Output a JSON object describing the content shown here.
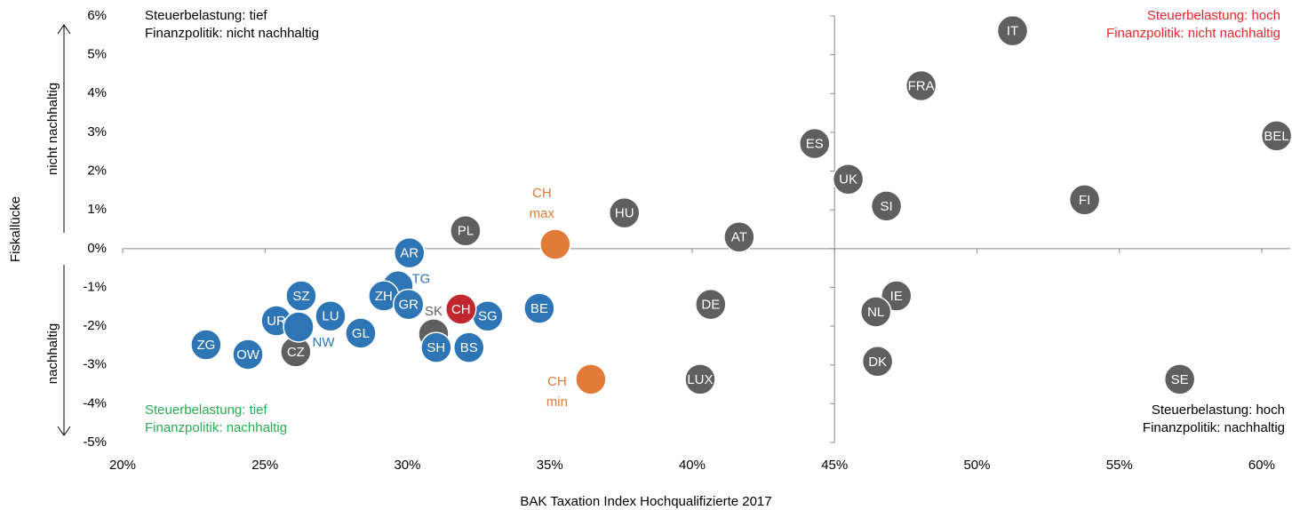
{
  "chart_data": {
    "type": "scatter",
    "x_title": "BAK Taxation Index Hochqualifizierte 2017",
    "y_title": "Fiskallücke",
    "y_arrow_up": "nicht nachhaltig",
    "y_arrow_down": "nachhaltig",
    "xlim": [
      20,
      61
    ],
    "ylim": [
      -5,
      6
    ],
    "y_axis_crosses": 45,
    "xticks": [
      {
        "value": 20,
        "label": "20%"
      },
      {
        "value": 25,
        "label": "25%"
      },
      {
        "value": 30,
        "label": "30%"
      },
      {
        "value": 35,
        "label": "35%"
      },
      {
        "value": 40,
        "label": "40%"
      },
      {
        "value": 45,
        "label": "45%"
      },
      {
        "value": 50,
        "label": "50%"
      },
      {
        "value": 55,
        "label": "55%"
      },
      {
        "value": 60,
        "label": "60%"
      }
    ],
    "yticks": [
      {
        "value": 6,
        "label": "6%"
      },
      {
        "value": 5,
        "label": "5%"
      },
      {
        "value": 4,
        "label": "4%"
      },
      {
        "value": 3,
        "label": "3%"
      },
      {
        "value": 2,
        "label": "2%"
      },
      {
        "value": 1,
        "label": "1%"
      },
      {
        "value": 0,
        "label": "0%"
      },
      {
        "value": -1,
        "label": "-1%"
      },
      {
        "value": -2,
        "label": "-2%"
      },
      {
        "value": -3,
        "label": "-3%"
      },
      {
        "value": -4,
        "label": "-4%"
      },
      {
        "value": -5,
        "label": "-5%"
      }
    ],
    "annotations": [
      {
        "lines": [
          "Steuerbelastung: tief",
          "Finanzpolitik: nicht nachhaltig"
        ],
        "color": "#000000"
      },
      {
        "lines": [
          "Steuerbelastung: hoch",
          "Finanzpolitik: nicht nachhaltig"
        ],
        "color": "#e8262b"
      },
      {
        "lines": [
          "Steuerbelastung: tief",
          "Finanzpolitik: nachhaltig"
        ],
        "color": "#2bab55"
      },
      {
        "lines": [
          "Steuerbelastung: hoch",
          "Finanzpolitik: nachhaltig"
        ],
        "color": "#000000"
      }
    ],
    "series": [
      {
        "color": "#5f5f5f",
        "labels": [
          "IT",
          "FRA",
          "BEL",
          "ES",
          "UK",
          "SI",
          "FI",
          "HU",
          "AT",
          "PL",
          "SK",
          "CZ",
          "DE",
          "LUX",
          "IE",
          "NL",
          "DK",
          "SE"
        ],
        "x": [
          51.25,
          48.04,
          60.52,
          44.3,
          45.48,
          46.82,
          53.78,
          37.62,
          41.65,
          32.04,
          30.92,
          26.08,
          40.65,
          40.28,
          47.17,
          46.45,
          46.51,
          57.12
        ],
        "values": [
          5.62,
          4.2,
          2.91,
          2.71,
          1.79,
          1.1,
          1.26,
          0.92,
          0.3,
          0.46,
          -2.2,
          -2.66,
          -1.44,
          -3.37,
          -1.22,
          -1.63,
          -2.91,
          -3.37
        ]
      },
      {
        "color": "#2e75b6",
        "labels": [
          "AR",
          "TG",
          "ZH",
          "GR",
          "SZ",
          "SG",
          "BE",
          "LU",
          "UR",
          "NW",
          "GL",
          "ZG",
          "OW",
          "SH",
          "BS"
        ],
        "x": [
          30.07,
          29.67,
          29.17,
          30.04,
          26.27,
          32.82,
          34.63,
          27.3,
          25.4,
          26.18,
          28.36,
          22.93,
          24.4,
          31.01,
          32.16
        ],
        "values": [
          -0.11,
          -0.96,
          -1.22,
          -1.44,
          -1.22,
          -1.74,
          -1.54,
          -1.74,
          -1.86,
          -2.02,
          -2.18,
          -2.48,
          -2.73,
          -2.55,
          -2.55
        ]
      },
      {
        "color": "#c0282d",
        "labels": [
          "CH"
        ],
        "x": [
          31.88
        ],
        "values": [
          -1.56
        ]
      },
      {
        "color": "#e07b39",
        "labels": [
          "CH max",
          "CH min"
        ],
        "x": [
          35.19,
          36.44
        ],
        "values": [
          0.11,
          -3.37
        ]
      }
    ]
  }
}
